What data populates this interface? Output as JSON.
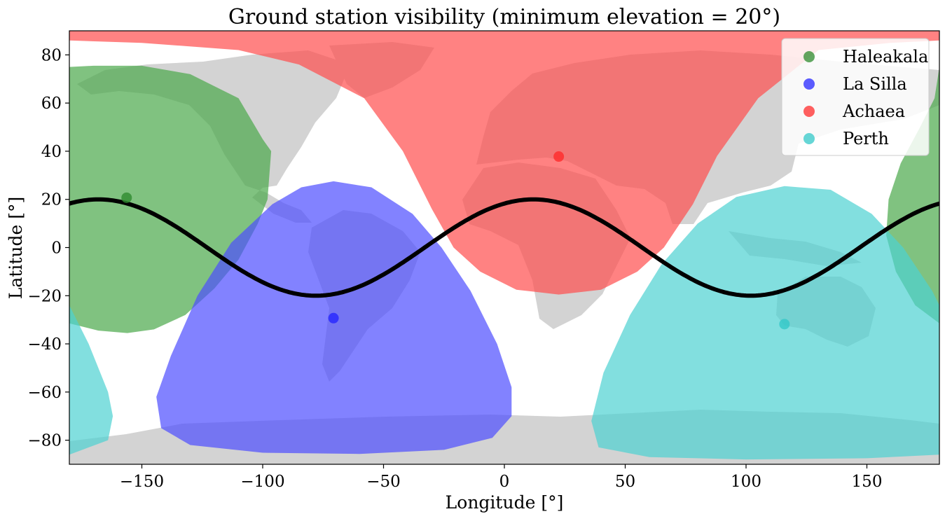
{
  "chart_data": {
    "type": "map",
    "title": "Ground station visibility (minimum elevation = 20°)",
    "xlabel": "Longitude [°]",
    "ylabel": "Latitude [°]",
    "xlim": [
      -180,
      180
    ],
    "ylim": [
      -90,
      90
    ],
    "xticks": [
      -150,
      -100,
      -50,
      0,
      50,
      100,
      150
    ],
    "xtick_labels": [
      "−150",
      "−100",
      "−50",
      "0",
      "50",
      "100",
      "150"
    ],
    "yticks": [
      80,
      60,
      40,
      20,
      0,
      -20,
      -40,
      -60,
      -80
    ],
    "ytick_labels": [
      "80",
      "60",
      "40",
      "20",
      "0",
      "−20",
      "−40",
      "−60",
      "−80"
    ],
    "legend_position": "top-right",
    "stations": [
      {
        "name": "Haleakala",
        "lon": -156.3,
        "lat": 20.7,
        "color": "#2e8b2e",
        "fill": "#4aa84a"
      },
      {
        "name": "La Silla",
        "lon": -70.7,
        "lat": -29.3,
        "color": "#2626ff",
        "fill": "#4d4dff"
      },
      {
        "name": "Achaea",
        "lon": 22.5,
        "lat": 37.8,
        "color": "#ff2b2b",
        "fill": "#ff4d4d"
      },
      {
        "name": "Perth",
        "lon": 115.9,
        "lat": -31.8,
        "color": "#33c8c8",
        "fill": "#4dd2d2"
      }
    ],
    "coverage": [
      {
        "station": "Haleakala",
        "wrap": true,
        "boundary": [
          [
            -180,
            75
          ],
          [
            -170,
            75.5
          ],
          [
            -150,
            75.5
          ],
          [
            -130,
            72
          ],
          [
            -110,
            62
          ],
          [
            -100,
            45
          ],
          [
            -96.5,
            40
          ],
          [
            -98,
            20
          ],
          [
            -102,
            10
          ],
          [
            -110,
            -5
          ],
          [
            -120,
            -17
          ],
          [
            -132,
            -28
          ],
          [
            -145,
            -34
          ],
          [
            -156,
            -35.5
          ],
          [
            -168,
            -34.5
          ],
          [
            -180,
            -31.5
          ],
          [
            -190,
            -24
          ],
          [
            -198,
            -10
          ],
          [
            -202,
            5
          ],
          [
            -201,
            20
          ],
          [
            -196,
            35
          ],
          [
            -188,
            50
          ],
          [
            -182,
            62
          ],
          [
            -180,
            75
          ]
        ]
      },
      {
        "station": "La Silla",
        "wrap": false,
        "boundary": [
          [
            -70.7,
            27.5
          ],
          [
            -55,
            25
          ],
          [
            -38,
            14
          ],
          [
            -26,
            0
          ],
          [
            -14,
            -18
          ],
          [
            -3,
            -40
          ],
          [
            3,
            -58
          ],
          [
            3,
            -70
          ],
          [
            -5,
            -79
          ],
          [
            -25,
            -84
          ],
          [
            -60,
            -85.7
          ],
          [
            -100,
            -85.2
          ],
          [
            -130,
            -82
          ],
          [
            -142,
            -75
          ],
          [
            -144,
            -62
          ],
          [
            -138,
            -45
          ],
          [
            -127,
            -20
          ],
          [
            -113,
            2
          ],
          [
            -96,
            18
          ],
          [
            -84,
            25
          ],
          [
            -70.7,
            27.5
          ]
        ]
      },
      {
        "station": "Achaea",
        "wrap": false,
        "boundary": [
          [
            -180,
            90
          ],
          [
            180,
            90
          ],
          [
            180,
            86
          ],
          [
            160,
            85
          ],
          [
            130,
            82
          ],
          [
            105,
            62
          ],
          [
            88,
            38
          ],
          [
            78,
            18
          ],
          [
            66,
            0
          ],
          [
            55,
            -10
          ],
          [
            40,
            -17.5
          ],
          [
            22.5,
            -19.5
          ],
          [
            5,
            -17.5
          ],
          [
            -10,
            -10
          ],
          [
            -21,
            0
          ],
          [
            -30,
            16
          ],
          [
            -42,
            40
          ],
          [
            -58,
            62
          ],
          [
            -85,
            76
          ],
          [
            -110,
            82
          ],
          [
            -150,
            85
          ],
          [
            -180,
            86
          ],
          [
            -180,
            90
          ]
        ]
      },
      {
        "station": "Perth",
        "wrap": true,
        "boundary": [
          [
            115.9,
            25.5
          ],
          [
            135,
            24
          ],
          [
            152,
            14
          ],
          [
            165,
            0
          ],
          [
            177,
            -18
          ],
          [
            188,
            -40
          ],
          [
            196,
            -60
          ],
          [
            198,
            -70
          ],
          [
            196,
            -80
          ],
          [
            180,
            -86
          ],
          [
            150,
            -87.5
          ],
          [
            100,
            -88
          ],
          [
            60,
            -87
          ],
          [
            39,
            -83
          ],
          [
            36,
            -72
          ],
          [
            41,
            -52
          ],
          [
            52,
            -28
          ],
          [
            65,
            -7
          ],
          [
            80,
            10
          ],
          [
            96,
            21
          ],
          [
            115.9,
            25.5
          ]
        ]
      }
    ],
    "ground_track": {
      "amplitude_deg": 20,
      "peak_lon": 12,
      "period_lon": 180,
      "line_color": "#000000"
    },
    "land_color": "#d3d3d3"
  }
}
